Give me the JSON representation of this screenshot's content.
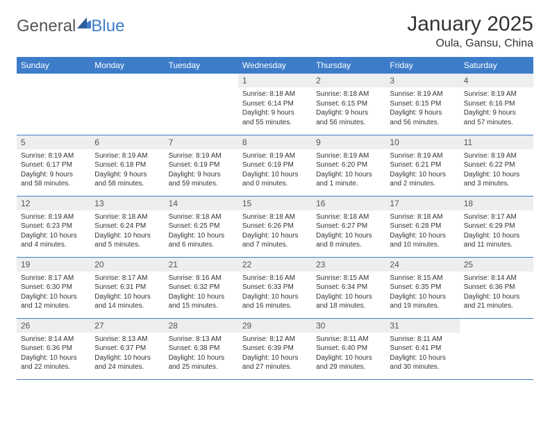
{
  "logo": {
    "text_a": "General",
    "text_b": "Blue"
  },
  "title": "January 2025",
  "location": "Oula, Gansu, China",
  "colors": {
    "header_bg": "#3d7cc9",
    "header_text": "#ffffff",
    "daynum_bg": "#eceeef",
    "border": "#3d7cc9",
    "page_bg": "#ffffff",
    "text": "#333333"
  },
  "weekdays": [
    "Sunday",
    "Monday",
    "Tuesday",
    "Wednesday",
    "Thursday",
    "Friday",
    "Saturday"
  ],
  "weeks": [
    [
      {
        "n": "",
        "sr": "",
        "ss": "",
        "d1": "",
        "d2": ""
      },
      {
        "n": "",
        "sr": "",
        "ss": "",
        "d1": "",
        "d2": ""
      },
      {
        "n": "",
        "sr": "",
        "ss": "",
        "d1": "",
        "d2": ""
      },
      {
        "n": "1",
        "sr": "Sunrise: 8:18 AM",
        "ss": "Sunset: 6:14 PM",
        "d1": "Daylight: 9 hours",
        "d2": "and 55 minutes."
      },
      {
        "n": "2",
        "sr": "Sunrise: 8:18 AM",
        "ss": "Sunset: 6:15 PM",
        "d1": "Daylight: 9 hours",
        "d2": "and 56 minutes."
      },
      {
        "n": "3",
        "sr": "Sunrise: 8:19 AM",
        "ss": "Sunset: 6:15 PM",
        "d1": "Daylight: 9 hours",
        "d2": "and 56 minutes."
      },
      {
        "n": "4",
        "sr": "Sunrise: 8:19 AM",
        "ss": "Sunset: 6:16 PM",
        "d1": "Daylight: 9 hours",
        "d2": "and 57 minutes."
      }
    ],
    [
      {
        "n": "5",
        "sr": "Sunrise: 8:19 AM",
        "ss": "Sunset: 6:17 PM",
        "d1": "Daylight: 9 hours",
        "d2": "and 58 minutes."
      },
      {
        "n": "6",
        "sr": "Sunrise: 8:19 AM",
        "ss": "Sunset: 6:18 PM",
        "d1": "Daylight: 9 hours",
        "d2": "and 58 minutes."
      },
      {
        "n": "7",
        "sr": "Sunrise: 8:19 AM",
        "ss": "Sunset: 6:19 PM",
        "d1": "Daylight: 9 hours",
        "d2": "and 59 minutes."
      },
      {
        "n": "8",
        "sr": "Sunrise: 8:19 AM",
        "ss": "Sunset: 6:19 PM",
        "d1": "Daylight: 10 hours",
        "d2": "and 0 minutes."
      },
      {
        "n": "9",
        "sr": "Sunrise: 8:19 AM",
        "ss": "Sunset: 6:20 PM",
        "d1": "Daylight: 10 hours",
        "d2": "and 1 minute."
      },
      {
        "n": "10",
        "sr": "Sunrise: 8:19 AM",
        "ss": "Sunset: 6:21 PM",
        "d1": "Daylight: 10 hours",
        "d2": "and 2 minutes."
      },
      {
        "n": "11",
        "sr": "Sunrise: 8:19 AM",
        "ss": "Sunset: 6:22 PM",
        "d1": "Daylight: 10 hours",
        "d2": "and 3 minutes."
      }
    ],
    [
      {
        "n": "12",
        "sr": "Sunrise: 8:19 AM",
        "ss": "Sunset: 6:23 PM",
        "d1": "Daylight: 10 hours",
        "d2": "and 4 minutes."
      },
      {
        "n": "13",
        "sr": "Sunrise: 8:18 AM",
        "ss": "Sunset: 6:24 PM",
        "d1": "Daylight: 10 hours",
        "d2": "and 5 minutes."
      },
      {
        "n": "14",
        "sr": "Sunrise: 8:18 AM",
        "ss": "Sunset: 6:25 PM",
        "d1": "Daylight: 10 hours",
        "d2": "and 6 minutes."
      },
      {
        "n": "15",
        "sr": "Sunrise: 8:18 AM",
        "ss": "Sunset: 6:26 PM",
        "d1": "Daylight: 10 hours",
        "d2": "and 7 minutes."
      },
      {
        "n": "16",
        "sr": "Sunrise: 8:18 AM",
        "ss": "Sunset: 6:27 PM",
        "d1": "Daylight: 10 hours",
        "d2": "and 8 minutes."
      },
      {
        "n": "17",
        "sr": "Sunrise: 8:18 AM",
        "ss": "Sunset: 6:28 PM",
        "d1": "Daylight: 10 hours",
        "d2": "and 10 minutes."
      },
      {
        "n": "18",
        "sr": "Sunrise: 8:17 AM",
        "ss": "Sunset: 6:29 PM",
        "d1": "Daylight: 10 hours",
        "d2": "and 11 minutes."
      }
    ],
    [
      {
        "n": "19",
        "sr": "Sunrise: 8:17 AM",
        "ss": "Sunset: 6:30 PM",
        "d1": "Daylight: 10 hours",
        "d2": "and 12 minutes."
      },
      {
        "n": "20",
        "sr": "Sunrise: 8:17 AM",
        "ss": "Sunset: 6:31 PM",
        "d1": "Daylight: 10 hours",
        "d2": "and 14 minutes."
      },
      {
        "n": "21",
        "sr": "Sunrise: 8:16 AM",
        "ss": "Sunset: 6:32 PM",
        "d1": "Daylight: 10 hours",
        "d2": "and 15 minutes."
      },
      {
        "n": "22",
        "sr": "Sunrise: 8:16 AM",
        "ss": "Sunset: 6:33 PM",
        "d1": "Daylight: 10 hours",
        "d2": "and 16 minutes."
      },
      {
        "n": "23",
        "sr": "Sunrise: 8:15 AM",
        "ss": "Sunset: 6:34 PM",
        "d1": "Daylight: 10 hours",
        "d2": "and 18 minutes."
      },
      {
        "n": "24",
        "sr": "Sunrise: 8:15 AM",
        "ss": "Sunset: 6:35 PM",
        "d1": "Daylight: 10 hours",
        "d2": "and 19 minutes."
      },
      {
        "n": "25",
        "sr": "Sunrise: 8:14 AM",
        "ss": "Sunset: 6:36 PM",
        "d1": "Daylight: 10 hours",
        "d2": "and 21 minutes."
      }
    ],
    [
      {
        "n": "26",
        "sr": "Sunrise: 8:14 AM",
        "ss": "Sunset: 6:36 PM",
        "d1": "Daylight: 10 hours",
        "d2": "and 22 minutes."
      },
      {
        "n": "27",
        "sr": "Sunrise: 8:13 AM",
        "ss": "Sunset: 6:37 PM",
        "d1": "Daylight: 10 hours",
        "d2": "and 24 minutes."
      },
      {
        "n": "28",
        "sr": "Sunrise: 8:13 AM",
        "ss": "Sunset: 6:38 PM",
        "d1": "Daylight: 10 hours",
        "d2": "and 25 minutes."
      },
      {
        "n": "29",
        "sr": "Sunrise: 8:12 AM",
        "ss": "Sunset: 6:39 PM",
        "d1": "Daylight: 10 hours",
        "d2": "and 27 minutes."
      },
      {
        "n": "30",
        "sr": "Sunrise: 8:11 AM",
        "ss": "Sunset: 6:40 PM",
        "d1": "Daylight: 10 hours",
        "d2": "and 29 minutes."
      },
      {
        "n": "31",
        "sr": "Sunrise: 8:11 AM",
        "ss": "Sunset: 6:41 PM",
        "d1": "Daylight: 10 hours",
        "d2": "and 30 minutes."
      },
      {
        "n": "",
        "sr": "",
        "ss": "",
        "d1": "",
        "d2": ""
      }
    ]
  ]
}
